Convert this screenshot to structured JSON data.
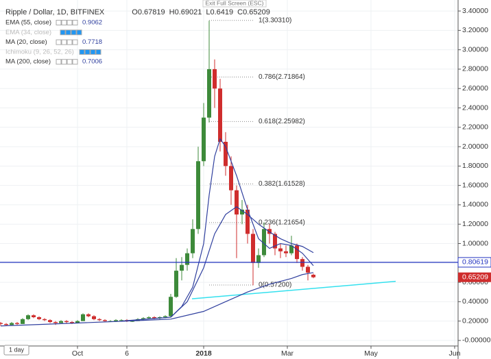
{
  "chart_data": {
    "type": "candlestick",
    "title": "Ripple / Dollar, 1D, BITFINEX",
    "exit_text": "Exit Full Screen (ESC)",
    "interval_button": "1 day",
    "ohlc_keys": [
      "O",
      "H",
      "L",
      "C"
    ],
    "up_color": "#3d8a3a",
    "down_color": "#cf2d2d",
    "xlim": [
      -148.5,
      185.5
    ],
    "xticks": [
      {
        "value": -92,
        "label": "Oct"
      },
      {
        "value": -56,
        "label": "6"
      },
      {
        "value": 0,
        "label": "2018"
      },
      {
        "value": 61,
        "label": "Mar"
      },
      {
        "value": 122,
        "label": "May"
      },
      {
        "value": 183,
        "label": "Jun"
      }
    ],
    "ylim": [
      -0.05,
      3.45
    ],
    "yticks": [
      {
        "value": 3.4,
        "label": "3.40000"
      },
      {
        "value": 3.2,
        "label": "3.20000"
      },
      {
        "value": 3.0,
        "label": "3.00000"
      },
      {
        "value": 2.8,
        "label": "2.80000"
      },
      {
        "value": 2.6,
        "label": "2.60000"
      },
      {
        "value": 2.4,
        "label": "2.40000"
      },
      {
        "value": 2.2,
        "label": "2.20000"
      },
      {
        "value": 2.0,
        "label": "2.00000"
      },
      {
        "value": 1.8,
        "label": "1.80000"
      },
      {
        "value": 1.6,
        "label": "1.60000"
      },
      {
        "value": 1.4,
        "label": "1.40000"
      },
      {
        "value": 1.2,
        "label": "1.20000"
      },
      {
        "value": 1.0,
        "label": "1.00000"
      },
      {
        "value": 0.8,
        "label": "0.80000"
      },
      {
        "value": 0.6,
        "label": "0.60000"
      },
      {
        "value": 0.4,
        "label": "0.40000"
      },
      {
        "value": 0.2,
        "label": "0.20000"
      },
      {
        "value": 0,
        "label": "-0.00000"
      }
    ],
    "grid": true,
    "ohlc": [
      [
        -148,
        0.18,
        0.19,
        0.15,
        0.17
      ],
      [
        -144,
        0.17,
        0.18,
        0.15,
        0.16
      ],
      [
        -140,
        0.16,
        0.19,
        0.16,
        0.18
      ],
      [
        -136,
        0.18,
        0.19,
        0.16,
        0.17
      ],
      [
        -132,
        0.17,
        0.23,
        0.17,
        0.22
      ],
      [
        -128,
        0.22,
        0.27,
        0.21,
        0.26
      ],
      [
        -124,
        0.26,
        0.27,
        0.23,
        0.24
      ],
      [
        -120,
        0.24,
        0.25,
        0.21,
        0.22
      ],
      [
        -116,
        0.22,
        0.23,
        0.2,
        0.21
      ],
      [
        -112,
        0.21,
        0.22,
        0.18,
        0.19
      ],
      [
        -108,
        0.19,
        0.2,
        0.16,
        0.18
      ],
      [
        -104,
        0.18,
        0.21,
        0.18,
        0.2
      ],
      [
        -100,
        0.2,
        0.21,
        0.18,
        0.19
      ],
      [
        -96,
        0.19,
        0.2,
        0.17,
        0.18
      ],
      [
        -92,
        0.18,
        0.21,
        0.18,
        0.2
      ],
      [
        -88,
        0.2,
        0.28,
        0.2,
        0.27
      ],
      [
        -84,
        0.27,
        0.28,
        0.24,
        0.25
      ],
      [
        -80,
        0.25,
        0.26,
        0.21,
        0.22
      ],
      [
        -76,
        0.22,
        0.23,
        0.2,
        0.21
      ],
      [
        -72,
        0.21,
        0.22,
        0.19,
        0.2
      ],
      [
        -68,
        0.2,
        0.21,
        0.19,
        0.2
      ],
      [
        -64,
        0.2,
        0.22,
        0.19,
        0.21
      ],
      [
        -60,
        0.21,
        0.22,
        0.2,
        0.21
      ],
      [
        -56,
        0.21,
        0.22,
        0.19,
        0.2
      ],
      [
        -52,
        0.2,
        0.21,
        0.19,
        0.2
      ],
      [
        -48,
        0.2,
        0.23,
        0.2,
        0.22
      ],
      [
        -44,
        0.22,
        0.24,
        0.21,
        0.23
      ],
      [
        -40,
        0.23,
        0.25,
        0.22,
        0.24
      ],
      [
        -36,
        0.24,
        0.25,
        0.22,
        0.23
      ],
      [
        -32,
        0.23,
        0.25,
        0.22,
        0.24
      ],
      [
        -28,
        0.24,
        0.26,
        0.23,
        0.25
      ],
      [
        -24,
        0.25,
        0.48,
        0.24,
        0.45
      ],
      [
        -20,
        0.45,
        0.85,
        0.44,
        0.72
      ],
      [
        -16,
        0.72,
        0.86,
        0.62,
        0.78
      ],
      [
        -12,
        0.78,
        0.95,
        0.72,
        0.9
      ],
      [
        -8,
        0.9,
        1.25,
        0.85,
        1.15
      ],
      [
        -4,
        1.15,
        2.0,
        1.1,
        1.85
      ],
      [
        0,
        1.85,
        2.45,
        1.8,
        2.3
      ],
      [
        4,
        2.3,
        3.3,
        2.25,
        2.8
      ],
      [
        8,
        2.8,
        2.9,
        2.4,
        2.6
      ],
      [
        12,
        2.6,
        2.7,
        1.95,
        2.05
      ],
      [
        16,
        2.05,
        2.15,
        1.7,
        1.8
      ],
      [
        20,
        1.8,
        1.9,
        1.4,
        1.55
      ],
      [
        24,
        1.55,
        1.6,
        0.85,
        1.3
      ],
      [
        28,
        1.3,
        1.45,
        1.2,
        1.35
      ],
      [
        32,
        1.35,
        1.4,
        1.0,
        1.1
      ],
      [
        36,
        1.1,
        1.15,
        0.57,
        0.8
      ],
      [
        40,
        0.8,
        0.95,
        0.75,
        0.88
      ],
      [
        44,
        0.88,
        1.22,
        0.86,
        1.15
      ],
      [
        48,
        1.15,
        1.2,
        1.0,
        1.1
      ],
      [
        52,
        1.1,
        1.12,
        0.88,
        0.95
      ],
      [
        56,
        0.95,
        1.0,
        0.85,
        0.92
      ],
      [
        60,
        0.92,
        0.98,
        0.86,
        0.9
      ],
      [
        64,
        0.9,
        1.08,
        0.88,
        0.98
      ],
      [
        68,
        0.98,
        1.0,
        0.8,
        0.84
      ],
      [
        72,
        0.84,
        0.86,
        0.72,
        0.76
      ],
      [
        76,
        0.76,
        0.78,
        0.62,
        0.7
      ],
      [
        80,
        0.67819,
        0.69021,
        0.6419,
        0.65209
      ]
    ],
    "indicators": [
      {
        "name": "EMA (55, close)",
        "value": 0.9062,
        "color": "#2f3f9e",
        "visible": true,
        "points": [
          [
            -60,
            0.2
          ],
          [
            -24,
            0.24
          ],
          [
            -12,
            0.4
          ],
          [
            0,
            0.75
          ],
          [
            8,
            1.1
          ],
          [
            16,
            1.3
          ],
          [
            24,
            1.38
          ],
          [
            32,
            1.3
          ],
          [
            40,
            1.2
          ],
          [
            48,
            1.12
          ],
          [
            56,
            1.05
          ],
          [
            64,
            1.0
          ],
          [
            72,
            0.97
          ],
          [
            80,
            0.9062
          ]
        ]
      },
      {
        "name": "EMA (34, close)",
        "color": "#2196f3",
        "visible": false
      },
      {
        "name": "MA (20, close)",
        "value": 0.7718,
        "color": "#2f3f9e",
        "visible": true,
        "points": [
          [
            -24,
            0.24
          ],
          [
            -16,
            0.35
          ],
          [
            -8,
            0.55
          ],
          [
            0,
            1.0
          ],
          [
            4,
            1.5
          ],
          [
            8,
            1.9
          ],
          [
            12,
            2.08
          ],
          [
            16,
            2.0
          ],
          [
            24,
            1.7
          ],
          [
            32,
            1.35
          ],
          [
            40,
            1.05
          ],
          [
            48,
            0.95
          ],
          [
            56,
            1.0
          ],
          [
            64,
            0.98
          ],
          [
            72,
            0.9
          ],
          [
            80,
            0.7718
          ]
        ]
      },
      {
        "name": "Ichimoku (9, 26, 52, 26)",
        "color": "#2196f3",
        "visible": false
      },
      {
        "name": "MA (200, close)",
        "value": 0.7006,
        "color": "#2f3f9e",
        "visible": true,
        "points": [
          [
            -148,
            0.15
          ],
          [
            -92,
            0.18
          ],
          [
            -56,
            0.2
          ],
          [
            -24,
            0.22
          ],
          [
            0,
            0.3
          ],
          [
            16,
            0.4
          ],
          [
            32,
            0.5
          ],
          [
            48,
            0.58
          ],
          [
            64,
            0.64
          ],
          [
            72,
            0.68
          ],
          [
            80,
            0.7006
          ]
        ]
      }
    ],
    "hline": {
      "value": 0.80619,
      "color": "#2233c0"
    },
    "trendline": {
      "color": "#33e0ee",
      "points": [
        [
          -8.5,
          0.43
        ],
        [
          140,
          0.61
        ]
      ]
    },
    "fib": {
      "x_range": [
        4,
        37
      ],
      "levels": [
        {
          "value": 3.3031,
          "label": "1(3.30310)"
        },
        {
          "value": 2.71864,
          "label": "0.786(2.71864)"
        },
        {
          "value": 2.25982,
          "label": "0.618(2.25982)"
        },
        {
          "value": 1.61528,
          "label": "0.382(1.61528)"
        },
        {
          "value": 1.21654,
          "label": "0.236(1.21654)"
        },
        {
          "value": 0.572,
          "label": "0(0.57200)"
        }
      ]
    }
  }
}
